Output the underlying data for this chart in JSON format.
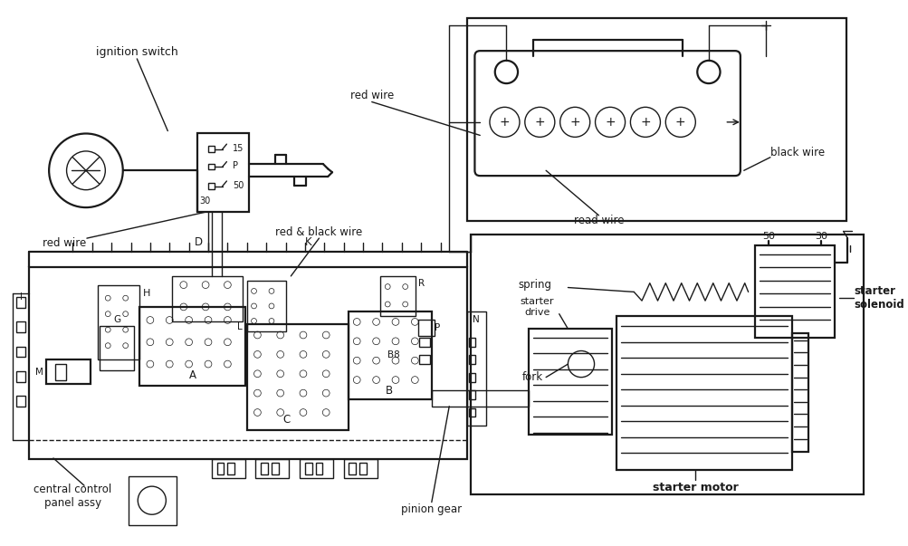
{
  "bg_color": "#ffffff",
  "line_color": "#1a1a1a",
  "fig_width": 10.04,
  "fig_height": 6.03,
  "labels": {
    "ignition_switch": "ignition switch",
    "red_wire_top": "red wire",
    "red_black_wire": "red & black wire",
    "red_wire_left": "red wire",
    "black_wire": "black wire",
    "read_wire": "read wire",
    "central_control": "central control\npanel assy",
    "pinion_gear": "pinion gear",
    "starter_motor": "starter motor",
    "starter_solenoid": "starter\nsolenoid",
    "spring": "spring",
    "fork": "fork",
    "starter_drive": "starter\ndrive"
  }
}
